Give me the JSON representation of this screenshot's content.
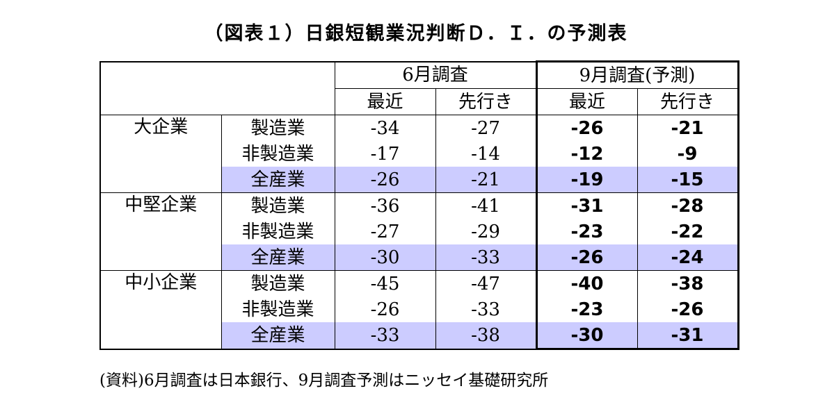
{
  "title": "（図表１）日銀短観業況判断Ｄ．Ｉ．の予測表",
  "header": {
    "survey_june": "6月調査",
    "survey_sept": "9月調査(予測)",
    "recent": "最近",
    "forecast": "先行き"
  },
  "highlight_color": "#ccccff",
  "groups": [
    {
      "name": "大企業",
      "rows": [
        {
          "sector": "製造業",
          "jun_recent": "-34",
          "jun_outlook": "-27",
          "sep_recent": "-26",
          "sep_outlook": "-21"
        },
        {
          "sector": "非製造業",
          "jun_recent": "-17",
          "jun_outlook": "-14",
          "sep_recent": "-12",
          "sep_outlook": "-9"
        },
        {
          "sector": "全産業",
          "jun_recent": "-26",
          "jun_outlook": "-21",
          "sep_recent": "-19",
          "sep_outlook": "-15"
        }
      ]
    },
    {
      "name": "中堅企業",
      "rows": [
        {
          "sector": "製造業",
          "jun_recent": "-36",
          "jun_outlook": "-41",
          "sep_recent": "-31",
          "sep_outlook": "-28"
        },
        {
          "sector": "非製造業",
          "jun_recent": "-27",
          "jun_outlook": "-29",
          "sep_recent": "-23",
          "sep_outlook": "-22"
        },
        {
          "sector": "全産業",
          "jun_recent": "-30",
          "jun_outlook": "-33",
          "sep_recent": "-26",
          "sep_outlook": "-24"
        }
      ]
    },
    {
      "name": "中小企業",
      "rows": [
        {
          "sector": "製造業",
          "jun_recent": "-45",
          "jun_outlook": "-47",
          "sep_recent": "-40",
          "sep_outlook": "-38"
        },
        {
          "sector": "非製造業",
          "jun_recent": "-26",
          "jun_outlook": "-33",
          "sep_recent": "-23",
          "sep_outlook": "-26"
        },
        {
          "sector": "全産業",
          "jun_recent": "-33",
          "jun_outlook": "-38",
          "sep_recent": "-30",
          "sep_outlook": "-31"
        }
      ]
    }
  ],
  "note": "(資料)6月調査は日本銀行、9月調査予測はニッセイ基礎研究所"
}
